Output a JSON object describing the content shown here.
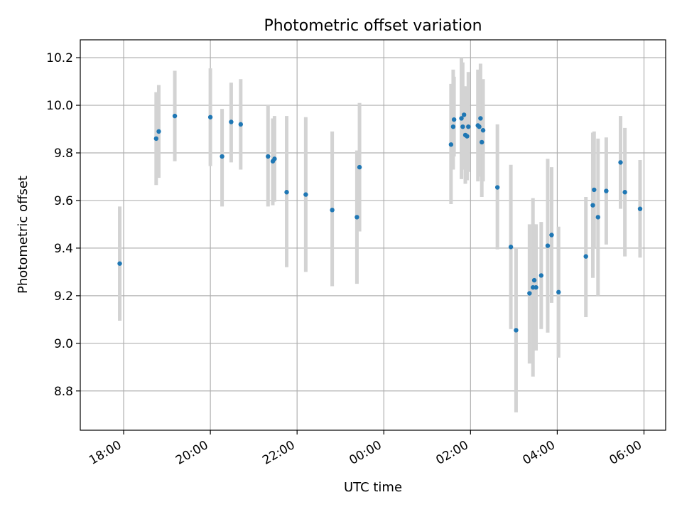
{
  "chart_data": {
    "type": "scatter",
    "title": "Photometric offset variation",
    "xlabel": "UTC time",
    "ylabel": "Photometric offset",
    "x_unit": "hours since 00:00 UTC (negative = previous day)",
    "xlim": [
      -7.0,
      6.5
    ],
    "ylim": [
      8.635,
      10.275
    ],
    "grid": true,
    "x_ticks": [
      {
        "value": -6,
        "label": "18:00"
      },
      {
        "value": -4,
        "label": "20:00"
      },
      {
        "value": -2,
        "label": "22:00"
      },
      {
        "value": 0,
        "label": "00:00"
      },
      {
        "value": 2,
        "label": "02:00"
      },
      {
        "value": 4,
        "label": "04:00"
      },
      {
        "value": 6,
        "label": "06:00"
      }
    ],
    "y_ticks": [
      {
        "value": 8.8,
        "label": "8.8"
      },
      {
        "value": 9.0,
        "label": "9.0"
      },
      {
        "value": 9.2,
        "label": "9.2"
      },
      {
        "value": 9.4,
        "label": "9.4"
      },
      {
        "value": 9.6,
        "label": "9.6"
      },
      {
        "value": 9.8,
        "label": "9.8"
      },
      {
        "value": 10.0,
        "label": "10.0"
      },
      {
        "value": 10.2,
        "label": "10.2"
      }
    ],
    "point_color": "#1f77b4",
    "errorbar_color": "#d3d3d3",
    "series": [
      {
        "name": "offset",
        "points": [
          {
            "x": -6.09,
            "y": 9.335,
            "lo": 9.095,
            "hi": 9.575
          },
          {
            "x": -5.25,
            "y": 9.86,
            "lo": 9.665,
            "hi": 10.055
          },
          {
            "x": -5.19,
            "y": 9.89,
            "lo": 9.695,
            "hi": 10.085
          },
          {
            "x": -4.82,
            "y": 9.955,
            "lo": 9.765,
            "hi": 10.145
          },
          {
            "x": -4.0,
            "y": 9.95,
            "lo": 9.745,
            "hi": 10.155
          },
          {
            "x": -3.73,
            "y": 9.785,
            "lo": 9.575,
            "hi": 9.985
          },
          {
            "x": -3.52,
            "y": 9.93,
            "lo": 9.76,
            "hi": 10.095
          },
          {
            "x": -3.3,
            "y": 9.92,
            "lo": 9.73,
            "hi": 10.11
          },
          {
            "x": -2.67,
            "y": 9.785,
            "lo": 9.575,
            "hi": 10.0
          },
          {
            "x": -2.56,
            "y": 9.765,
            "lo": 9.58,
            "hi": 9.945
          },
          {
            "x": -2.52,
            "y": 9.775,
            "lo": 9.595,
            "hi": 9.955
          },
          {
            "x": -2.24,
            "y": 9.635,
            "lo": 9.32,
            "hi": 9.955
          },
          {
            "x": -1.8,
            "y": 9.625,
            "lo": 9.3,
            "hi": 9.95
          },
          {
            "x": -1.19,
            "y": 9.56,
            "lo": 9.24,
            "hi": 9.89
          },
          {
            "x": -0.62,
            "y": 9.53,
            "lo": 9.25,
            "hi": 9.81
          },
          {
            "x": -0.56,
            "y": 9.74,
            "lo": 9.47,
            "hi": 10.01
          },
          {
            "x": 1.55,
            "y": 9.835,
            "lo": 9.585,
            "hi": 10.09
          },
          {
            "x": 1.6,
            "y": 9.91,
            "lo": 9.73,
            "hi": 10.15
          },
          {
            "x": 1.62,
            "y": 9.94,
            "lo": 9.785,
            "hi": 10.12
          },
          {
            "x": 1.79,
            "y": 9.945,
            "lo": 9.69,
            "hi": 10.2
          },
          {
            "x": 1.82,
            "y": 9.91,
            "lo": 9.73,
            "hi": 10.18
          },
          {
            "x": 1.85,
            "y": 9.96,
            "lo": 9.82,
            "hi": 10.07
          },
          {
            "x": 1.88,
            "y": 9.875,
            "lo": 9.67,
            "hi": 10.08
          },
          {
            "x": 1.92,
            "y": 9.87,
            "lo": 9.685,
            "hi": 10.05
          },
          {
            "x": 1.95,
            "y": 9.91,
            "lo": 9.72,
            "hi": 10.14
          },
          {
            "x": 2.17,
            "y": 9.915,
            "lo": 9.68,
            "hi": 10.15
          },
          {
            "x": 2.2,
            "y": 9.91,
            "lo": 9.7,
            "hi": 10.1
          },
          {
            "x": 2.23,
            "y": 9.945,
            "lo": 9.725,
            "hi": 10.175
          },
          {
            "x": 2.26,
            "y": 9.845,
            "lo": 9.615,
            "hi": 10.075
          },
          {
            "x": 2.29,
            "y": 9.895,
            "lo": 9.68,
            "hi": 10.11
          },
          {
            "x": 2.62,
            "y": 9.655,
            "lo": 9.395,
            "hi": 9.92
          },
          {
            "x": 2.93,
            "y": 9.405,
            "lo": 9.06,
            "hi": 9.75
          },
          {
            "x": 3.05,
            "y": 9.055,
            "lo": 8.71,
            "hi": 9.4
          },
          {
            "x": 3.36,
            "y": 9.21,
            "lo": 8.915,
            "hi": 9.5
          },
          {
            "x": 3.44,
            "y": 9.235,
            "lo": 8.86,
            "hi": 9.61
          },
          {
            "x": 3.47,
            "y": 9.265,
            "lo": 9.03,
            "hi": 9.5
          },
          {
            "x": 3.51,
            "y": 9.235,
            "lo": 8.97,
            "hi": 9.5
          },
          {
            "x": 3.63,
            "y": 9.285,
            "lo": 9.06,
            "hi": 9.51
          },
          {
            "x": 3.78,
            "y": 9.41,
            "lo": 9.045,
            "hi": 9.775
          },
          {
            "x": 3.87,
            "y": 9.455,
            "lo": 9.17,
            "hi": 9.74
          },
          {
            "x": 4.03,
            "y": 9.215,
            "lo": 8.94,
            "hi": 9.49
          },
          {
            "x": 4.66,
            "y": 9.365,
            "lo": 9.11,
            "hi": 9.615
          },
          {
            "x": 4.82,
            "y": 9.58,
            "lo": 9.275,
            "hi": 9.885
          },
          {
            "x": 4.85,
            "y": 9.645,
            "lo": 9.4,
            "hi": 9.89
          },
          {
            "x": 4.94,
            "y": 9.53,
            "lo": 9.2,
            "hi": 9.86
          },
          {
            "x": 5.13,
            "y": 9.64,
            "lo": 9.415,
            "hi": 9.865
          },
          {
            "x": 5.46,
            "y": 9.76,
            "lo": 9.565,
            "hi": 9.955
          },
          {
            "x": 5.56,
            "y": 9.635,
            "lo": 9.365,
            "hi": 9.905
          },
          {
            "x": 5.91,
            "y": 9.565,
            "lo": 9.36,
            "hi": 9.77
          }
        ]
      }
    ]
  }
}
